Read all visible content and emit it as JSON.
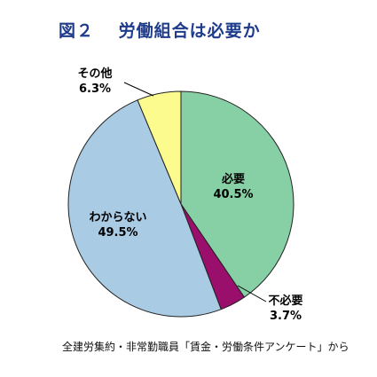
{
  "title": "図２　 労働組合は必要か",
  "source_note": "全建労集約・非常勤職員「賃金・労働条件アンケート」から",
  "chart_data": {
    "type": "pie",
    "start_angle_deg": 0,
    "direction": "clockwise",
    "slices": [
      {
        "label": "必要",
        "value": 40.5,
        "display": "40.5%",
        "color": "#87cfa4"
      },
      {
        "label": "不必要",
        "value": 3.7,
        "display": "3.7%",
        "color": "#9a0f6b"
      },
      {
        "label": "わからない",
        "value": 49.5,
        "display": "49.5%",
        "color": "#a9cbe3"
      },
      {
        "label": "その他",
        "value": 6.3,
        "display": "6.3%",
        "color": "#fbfc8d"
      }
    ]
  }
}
